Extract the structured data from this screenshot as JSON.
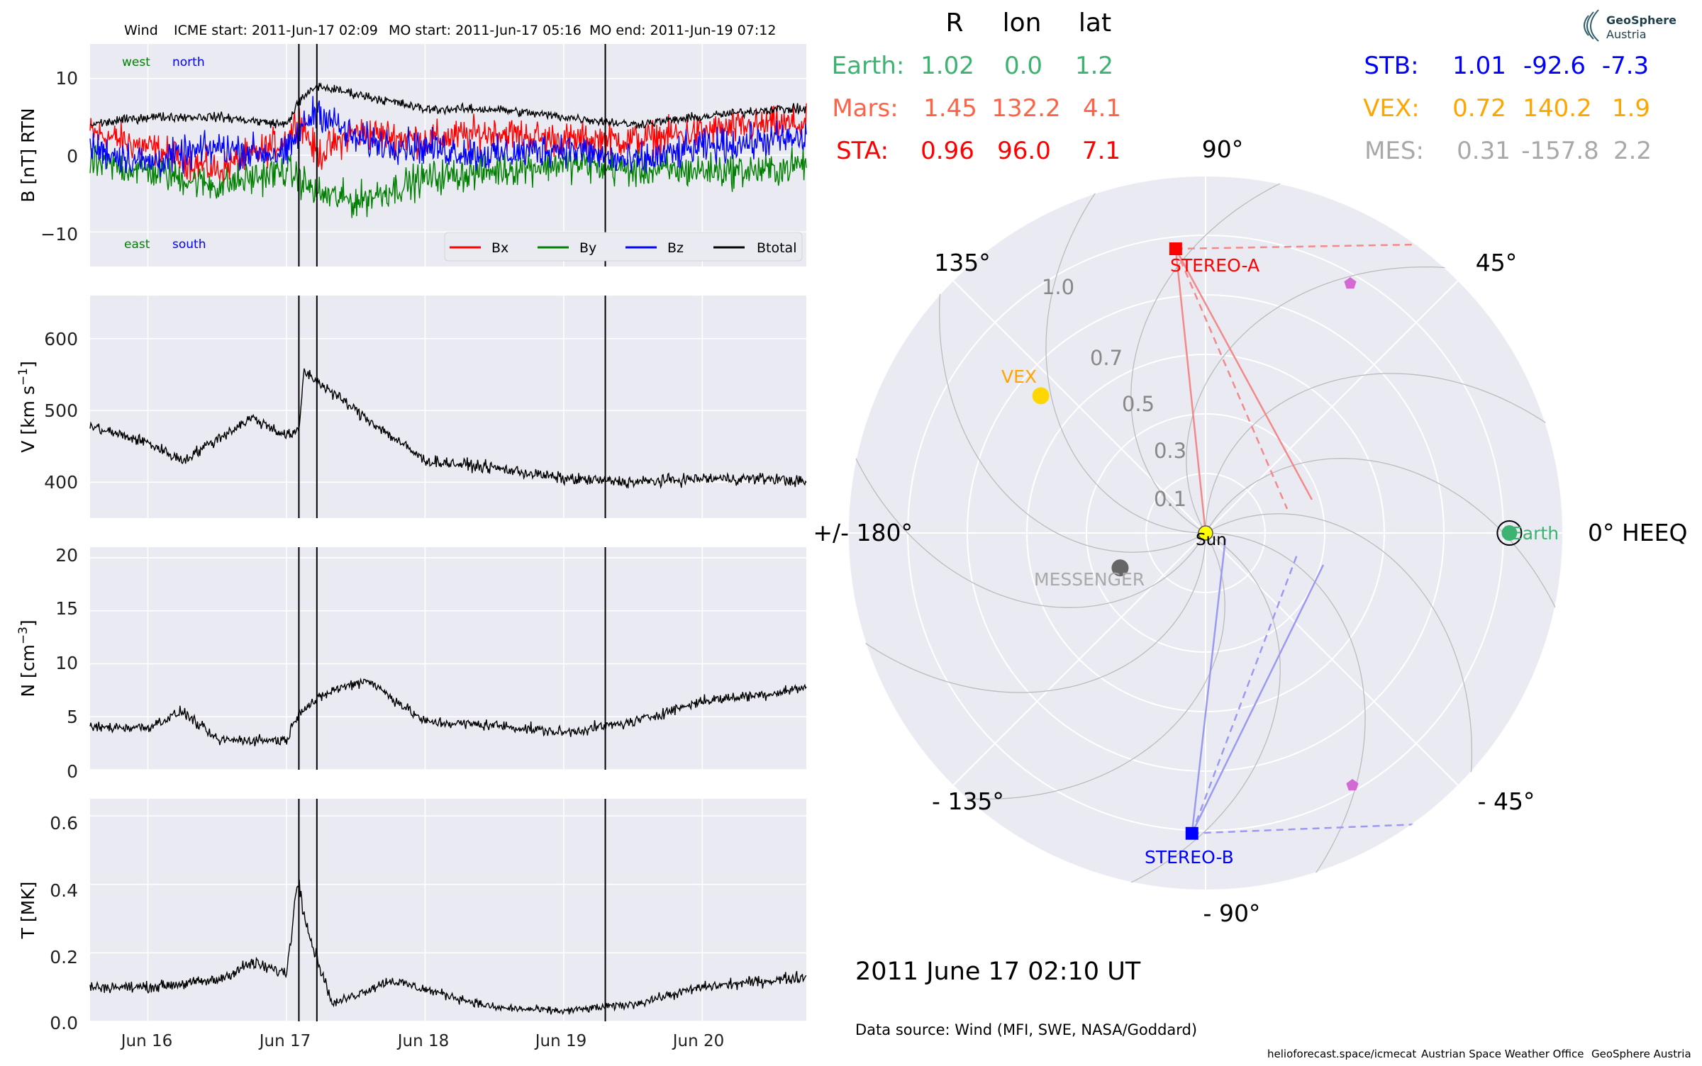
{
  "title": {
    "spacecraft": "Wind",
    "icme_start": "ICME start: 2011-Jun-17 02:09",
    "mo_start": "MO start: 2011-Jun-17 05:16",
    "mo_end": "MO end: 2011-Jun-19 07:12"
  },
  "colors": {
    "panel_bg": "#EAEAF2",
    "bx": "#FF0000",
    "by": "#008000",
    "bz": "#0000FF",
    "btotal": "#000000",
    "earth": "#3CB371",
    "mars": "#FF6347",
    "sta": "#FF0000",
    "stb": "#0000FF",
    "vex": "#FFA500",
    "mes": "#A9A9A9"
  },
  "timeseries": {
    "x_ticks": [
      "Jun 16",
      "Jun 17",
      "Jun 18",
      "Jun 19",
      "Jun 20"
    ],
    "x_range": [
      "2011-06-15 14:00",
      "2011-06-20 18:00"
    ],
    "event_lines": [
      "2011-06-17 02:09",
      "2011-06-17 05:16",
      "2011-06-19 07:12"
    ],
    "b_ylabel": "B [nT] RTN",
    "v_ylabel": "V [km s",
    "v_ylabel_exp": "−1",
    "v_ylabel_end": "]",
    "n_ylabel": "N [cm",
    "n_ylabel_exp": "−3",
    "n_ylabel_end": "]",
    "t_ylabel": "T [MK]",
    "b_ticks": [
      "10",
      "0",
      "−10"
    ],
    "v_ticks": [
      "600",
      "500",
      "400"
    ],
    "n_ticks": [
      "20",
      "15",
      "10",
      "5",
      "0"
    ],
    "t_ticks": [
      "0.6",
      "0.4",
      "0.2",
      "0.0"
    ],
    "b_annotations": {
      "west": "west",
      "north": "north",
      "east": "east",
      "south": "south"
    },
    "legend": [
      "Bx",
      "By",
      "Bz",
      "Btotal"
    ]
  },
  "chart_data": [
    {
      "type": "line",
      "ylabel": "B [nT] RTN",
      "ylim": [
        -14.5,
        14.5
      ],
      "x": [
        "2011-06-15 14:00",
        "2011-06-16 00:00",
        "2011-06-16 12:00",
        "2011-06-17 00:00",
        "2011-06-17 02:09",
        "2011-06-17 05:16",
        "2011-06-17 12:00",
        "2011-06-18 00:00",
        "2011-06-18 12:00",
        "2011-06-19 00:00",
        "2011-06-19 12:00",
        "2011-06-20 00:00",
        "2011-06-20 12:00",
        "2011-06-20 18:00"
      ],
      "series": [
        {
          "name": "Bx",
          "values": [
            3,
            1,
            -2,
            2,
            5,
            0,
            3,
            2,
            3,
            2,
            2,
            3,
            4,
            4
          ]
        },
        {
          "name": "By",
          "values": [
            -1,
            -2,
            -4,
            -2,
            -3,
            -5,
            -6,
            -3,
            -2,
            -1,
            -2,
            -2,
            -2,
            -1
          ]
        },
        {
          "name": "Bz",
          "values": [
            1,
            -1,
            1,
            0,
            3,
            6,
            2,
            1,
            0,
            1,
            -1,
            1,
            2,
            2
          ]
        },
        {
          "name": "Btotal",
          "values": [
            4,
            5,
            5,
            4,
            7,
            9,
            8,
            6,
            6,
            5,
            4,
            5,
            6,
            6
          ]
        }
      ]
    },
    {
      "type": "line",
      "ylabel": "V [km s^-1]",
      "ylim": [
        350,
        660
      ],
      "x": [
        "2011-06-15 14:00",
        "2011-06-16 00:00",
        "2011-06-16 06:00",
        "2011-06-16 12:00",
        "2011-06-16 18:00",
        "2011-06-17 00:00",
        "2011-06-17 02:09",
        "2011-06-17 03:00",
        "2011-06-17 12:00",
        "2011-06-18 00:00",
        "2011-06-18 12:00",
        "2011-06-19 00:00",
        "2011-06-19 12:00",
        "2011-06-20 00:00",
        "2011-06-20 12:00",
        "2011-06-20 18:00"
      ],
      "values": [
        478,
        455,
        430,
        460,
        490,
        465,
        470,
        555,
        500,
        430,
        420,
        405,
        400,
        405,
        405,
        400
      ]
    },
    {
      "type": "line",
      "ylabel": "N [cm^-3]",
      "ylim": [
        0,
        21
      ],
      "x": [
        "2011-06-15 14:00",
        "2011-06-16 00:00",
        "2011-06-16 06:00",
        "2011-06-16 12:00",
        "2011-06-17 00:00",
        "2011-06-17 02:09",
        "2011-06-17 08:00",
        "2011-06-17 14:00",
        "2011-06-18 00:00",
        "2011-06-18 12:00",
        "2011-06-19 00:00",
        "2011-06-19 12:00",
        "2011-06-20 00:00",
        "2011-06-20 12:00",
        "2011-06-20 18:00"
      ],
      "values": [
        4,
        4,
        5.5,
        2.8,
        2.8,
        5.5,
        7.5,
        8.5,
        4.5,
        4.2,
        3.5,
        4.5,
        6.5,
        7.2,
        7.8
      ]
    },
    {
      "type": "line",
      "ylabel": "T [MK]",
      "ylim": [
        0,
        0.65
      ],
      "x": [
        "2011-06-15 14:00",
        "2011-06-16 00:00",
        "2011-06-16 12:00",
        "2011-06-16 18:00",
        "2011-06-17 00:00",
        "2011-06-17 02:00",
        "2011-06-17 04:00",
        "2011-06-17 08:00",
        "2011-06-17 18:00",
        "2011-06-18 12:00",
        "2011-06-19 00:00",
        "2011-06-19 12:00",
        "2011-06-20 00:00",
        "2011-06-20 18:00"
      ],
      "values": [
        0.1,
        0.1,
        0.12,
        0.17,
        0.14,
        0.42,
        0.25,
        0.05,
        0.12,
        0.04,
        0.03,
        0.05,
        0.1,
        0.13
      ]
    },
    {
      "type": "scatter",
      "projection": "polar",
      "r_ticks": [
        "0.1",
        "0.3",
        "0.5",
        "0.7",
        "1.0"
      ],
      "angle_labels": [
        "90°",
        "45°",
        "0° HEEQ",
        "- 45°",
        "- 90°",
        "- 135°",
        "+/- 180°",
        "135°"
      ],
      "points": [
        {
          "name": "Earth",
          "r": 1.02,
          "lon": 0.0,
          "lat": 1.2
        },
        {
          "name": "STEREO-A",
          "r": 0.96,
          "lon": 96.0,
          "lat": 7.1
        },
        {
          "name": "STEREO-B",
          "r": 1.01,
          "lon": -92.6,
          "lat": -7.3
        },
        {
          "name": "VEX",
          "r": 0.72,
          "lon": 140.2,
          "lat": 1.9
        },
        {
          "name": "MESSENGER",
          "r": 0.31,
          "lon": -157.8,
          "lat": 2.2
        },
        {
          "name": "Sun",
          "r": 0.0,
          "lon": 0.0,
          "lat": 0.0
        }
      ]
    }
  ],
  "positions": {
    "headers": [
      "R",
      "lon",
      "lat"
    ],
    "left_rows": [
      {
        "name": "Earth:",
        "r": "1.02",
        "lon": "0.0",
        "lat": "1.2"
      },
      {
        "name": "Mars:",
        "r": "1.45",
        "lon": "132.2",
        "lat": "4.1"
      },
      {
        "name": "STA:",
        "r": "0.96",
        "lon": "96.0",
        "lat": "7.1"
      }
    ],
    "right_rows": [
      {
        "name": "STB:",
        "r": "1.01",
        "lon": "-92.6",
        "lat": "-7.3"
      },
      {
        "name": "VEX:",
        "r": "0.72",
        "lon": "140.2",
        "lat": "1.9"
      },
      {
        "name": "MES:",
        "r": "0.31",
        "lon": "-157.8",
        "lat": "2.2"
      }
    ]
  },
  "polar": {
    "angle_labels": {
      "a90": "90°",
      "a45": "45°",
      "a0": "0° HEEQ",
      "am45": "- 45°",
      "am90": "- 90°",
      "am135": "- 135°",
      "a180": "+/- 180°",
      "a135": "135°"
    },
    "r_ticks": [
      "0.1",
      "0.3",
      "0.5",
      "0.7",
      "1.0"
    ],
    "labels": {
      "sta": "STEREO-A",
      "stb": "STEREO-B",
      "vex": "VEX",
      "messenger": "MESSENGER",
      "sun": "Sun",
      "earth": "Earth"
    }
  },
  "datetime": "2011 June 17  02:10 UT",
  "data_source": "Data source: Wind (MFI, SWE, NASA/Goddard)",
  "footer": {
    "url": "helioforecast.space/icmecat",
    "office": "Austrian Space Weather Office",
    "org": "GeoSphere Austria"
  },
  "logo": {
    "line1": "GeoSphere",
    "line2": "Austria"
  }
}
